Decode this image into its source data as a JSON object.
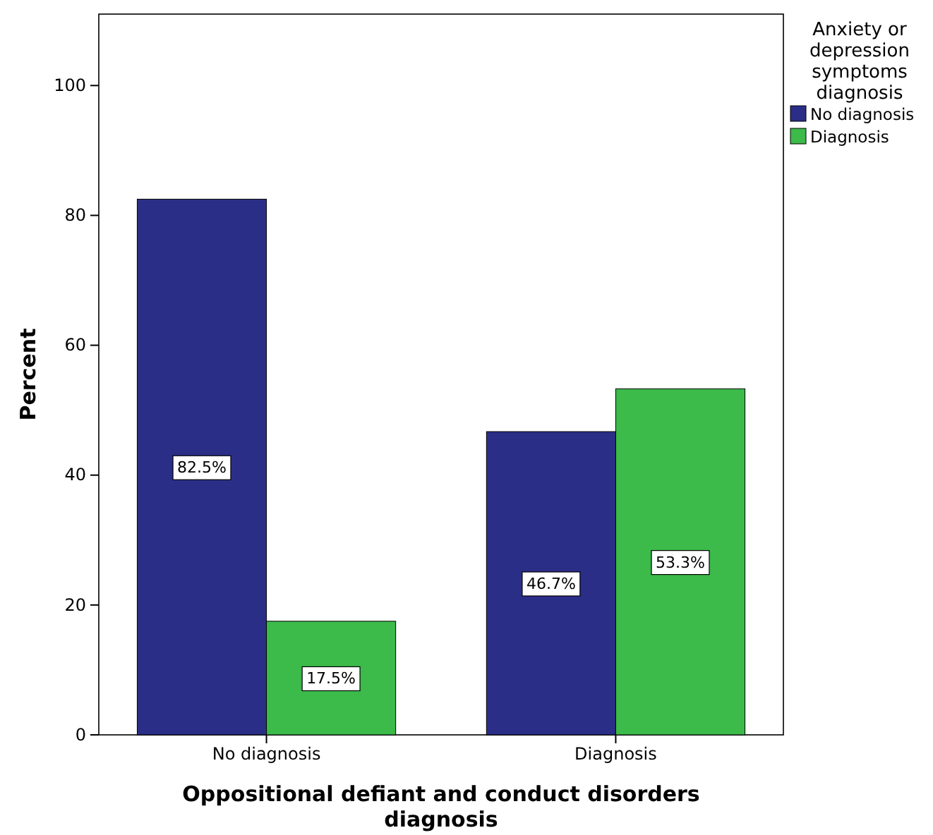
{
  "chart_data": {
    "type": "bar",
    "xlabel": "Oppositional defiant and conduct disorders diagnosis",
    "ylabel": "Percent",
    "legend_title": "Anxiety or depression symptoms diagnosis",
    "categories": [
      "No diagnosis",
      "Diagnosis"
    ],
    "series": [
      {
        "name": "No diagnosis",
        "color": "#2b2e87",
        "values": [
          82.5,
          46.7
        ],
        "value_labels": [
          "82.5%",
          "46.7%"
        ]
      },
      {
        "name": "Diagnosis",
        "color": "#3cba4a",
        "values": [
          17.5,
          53.3
        ],
        "value_labels": [
          "17.5%",
          "53.3%"
        ]
      }
    ],
    "ylim": [
      0,
      111
    ],
    "yticks": [
      0,
      20,
      40,
      60,
      80,
      100
    ],
    "grid": false,
    "legend": "right"
  }
}
